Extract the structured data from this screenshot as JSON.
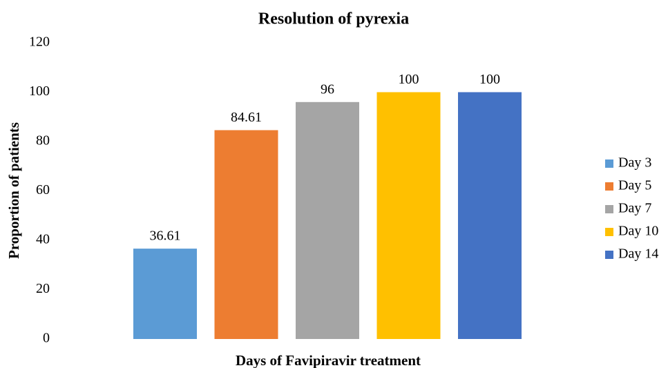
{
  "chart_data": {
    "type": "bar",
    "title": "Resolution of pyrexia",
    "x_label": "Days of Favipiravir treatment",
    "y_label": "Proportion of patients",
    "series": [
      {
        "name": "Day 3",
        "color": "#5b9bd5",
        "values": [
          36.61
        ]
      },
      {
        "name": "Day 5",
        "color": "#ed7d31",
        "values": [
          84.61
        ]
      },
      {
        "name": "Day 7",
        "color": "#a5a5a5",
        "values": [
          96
        ]
      },
      {
        "name": "Day 10",
        "color": "#ffc000",
        "values": [
          100
        ]
      },
      {
        "name": "Day 14",
        "color": "#4472c4",
        "values": [
          100
        ]
      }
    ],
    "ylim": [
      0,
      120
    ],
    "yticks": [
      0,
      20,
      40,
      60,
      80,
      100,
      120
    ],
    "grid": false,
    "legend": "right"
  }
}
